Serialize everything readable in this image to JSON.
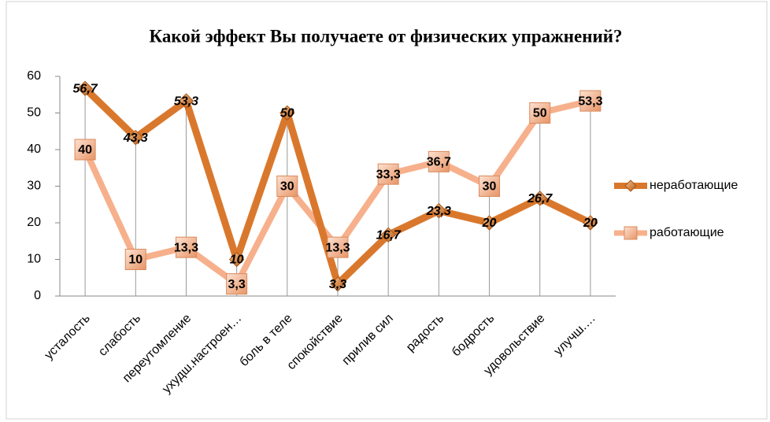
{
  "chart_data": {
    "type": "line",
    "title": "Какой эффект Вы получаете от физических упражнений?",
    "categories": [
      "усталость",
      "слабость",
      "переутомление",
      "ухудш.настроен…",
      "боль в теле",
      "спокойствие",
      "прилив сил",
      "радость",
      "бодрость",
      "удовольствие",
      "улучш.…"
    ],
    "series": [
      {
        "name": "неработающие",
        "color": "#d9782d",
        "marker": "diamond",
        "values": [
          56.7,
          43.3,
          53.3,
          10,
          50,
          3.3,
          16.7,
          23.3,
          20,
          26.7,
          20
        ],
        "value_labels": [
          "56,7",
          "43,3",
          "53,3",
          "10",
          "50",
          "3,3",
          "16,7",
          "23,3",
          "20",
          "26,7",
          "20"
        ]
      },
      {
        "name": "работающие",
        "color": "#f7b08c",
        "marker": "square",
        "values": [
          40,
          10,
          13.3,
          3.3,
          30,
          13.3,
          33.3,
          36.7,
          30,
          50,
          53.3
        ],
        "value_labels": [
          "40",
          "10",
          "13,3",
          "3,3",
          "30",
          "13,3",
          "33,3",
          "36,7",
          "30",
          "50",
          "53,3"
        ]
      }
    ],
    "ylim": [
      0,
      60
    ],
    "yticks": [
      0,
      10,
      20,
      30,
      40,
      50,
      60
    ],
    "grid": false,
    "drop_lines": true,
    "legend": "right"
  }
}
